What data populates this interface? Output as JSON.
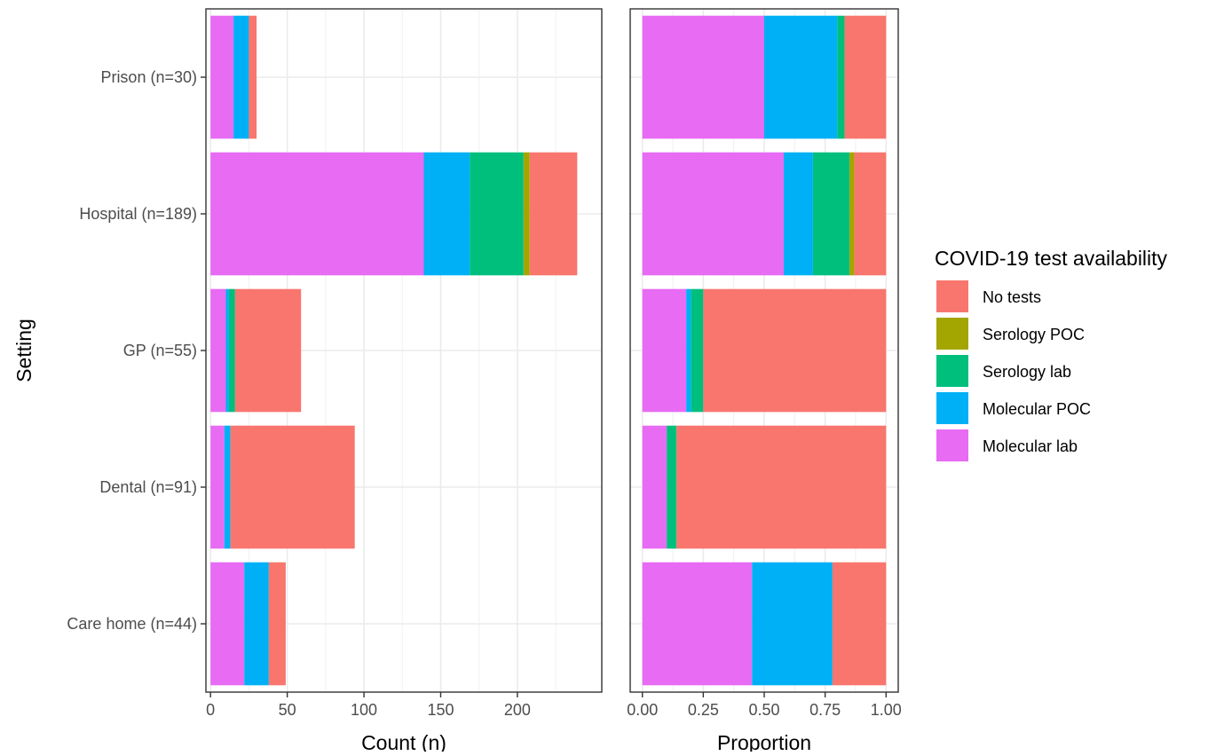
{
  "chart_data": {
    "type": "bar",
    "orientation": "horizontal",
    "stacked": true,
    "ylabel": "Setting",
    "categories": [
      "Prison (n=30)",
      "Hospital (n=189)",
      "GP (n=55)",
      "Dental (n=91)",
      "Care home (n=44)"
    ],
    "legend": {
      "title": "COVID-19 test availability",
      "placement": "right",
      "entries": [
        "No tests",
        "Serology POC",
        "Serology lab",
        "Molecular POC",
        "Molecular lab"
      ]
    },
    "stack_order": [
      "Molecular lab",
      "Molecular POC",
      "Serology lab",
      "Serology POC",
      "No tests"
    ],
    "colors": {
      "No tests": "#F8766D",
      "Serology POC": "#A3A500",
      "Serology lab": "#00BF7D",
      "Molecular POC": "#00B0F6",
      "Molecular lab": "#E76BF3"
    },
    "grid": true,
    "panels": [
      {
        "xlabel": "Count (n)",
        "xlim": [
          -3,
          255
        ],
        "xticks": [
          0,
          50,
          100,
          150,
          200
        ],
        "xtick_labels": [
          "0",
          "50",
          "100",
          "150",
          "200"
        ],
        "series": [
          {
            "name": "Molecular lab",
            "values": [
              15,
              139,
              10,
              9,
              22
            ]
          },
          {
            "name": "Molecular POC",
            "values": [
              10,
              30,
              2,
              4,
              16
            ]
          },
          {
            "name": "Serology lab",
            "values": [
              0,
              35,
              4,
              0,
              0
            ]
          },
          {
            "name": "Serology POC",
            "values": [
              0,
              4,
              0,
              0,
              0
            ]
          },
          {
            "name": "No tests",
            "values": [
              5,
              31,
              43,
              81,
              11
            ]
          }
        ]
      },
      {
        "xlabel": "Proportion",
        "xlim": [
          -0.05,
          1.05
        ],
        "xticks": [
          0,
          0.25,
          0.5,
          0.75,
          1
        ],
        "xtick_labels": [
          "0.00",
          "0.25",
          "0.50",
          "0.75",
          "1.00"
        ],
        "series": [
          {
            "name": "Molecular lab",
            "values": [
              0.5,
              0.58,
              0.18,
              0.1,
              0.45
            ]
          },
          {
            "name": "Molecular POC",
            "values": [
              0.3,
              0.12,
              0.02,
              0.0,
              0.33
            ]
          },
          {
            "name": "Serology lab",
            "values": [
              0.03,
              0.15,
              0.05,
              0.04,
              0.0
            ]
          },
          {
            "name": "Serology POC",
            "values": [
              0.0,
              0.02,
              0.0,
              0.0,
              0.0
            ]
          },
          {
            "name": "No tests",
            "values": [
              0.17,
              0.13,
              0.75,
              0.86,
              0.22
            ]
          }
        ]
      }
    ]
  }
}
